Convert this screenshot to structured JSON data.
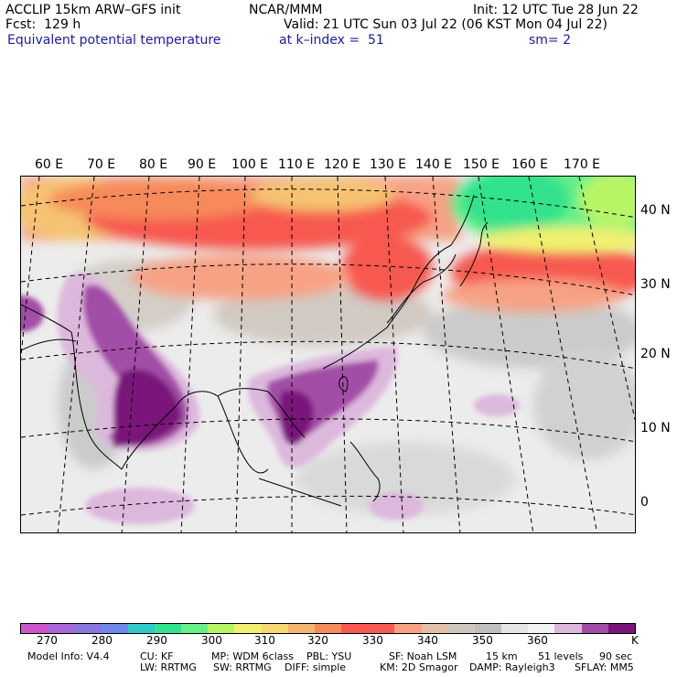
{
  "header": {
    "model": "ACCLIP 15km ARW–GFS init",
    "org": "NCAR/MMM",
    "init": "Init: 12 UTC Tue 28 Jun 22",
    "fcst": "Fcst:  129 h",
    "valid": "Valid: 21 UTC Sun 03 Jul 22 (06 KST Mon 04 Jul 22)",
    "field": "Equivalent potential temperature",
    "level": "at k–index =  51",
    "smooth": "sm= 2"
  },
  "map": {
    "lon_labels": [
      "60 E",
      "70 E",
      "80 E",
      "90 E",
      "100 E",
      "110 E",
      "120 E",
      "130 E",
      "140 E",
      "150 E",
      "160 E",
      "170 E"
    ],
    "lat_labels": [
      "40 N",
      "30 N",
      "20 N",
      "10 N",
      "0"
    ]
  },
  "colorbar": {
    "colors": [
      "#cc55cc",
      "#a866d8",
      "#8877dd",
      "#6e88e8",
      "#33c8c8",
      "#33e28c",
      "#66f08a",
      "#b8f566",
      "#f0f070",
      "#f5d873",
      "#f5b572",
      "#f78a5a",
      "#f7584f",
      "#f65a50",
      "#f7a285",
      "#e3c1a8",
      "#cfc7bf",
      "#bfbfbf",
      "#e6e6e6",
      "#f4f4f4",
      "#ddb8dd",
      "#a24ea6",
      "#7a157a"
    ],
    "labels": [
      "270",
      "280",
      "290",
      "300",
      "310",
      "320",
      "330",
      "340",
      "350",
      "360"
    ],
    "unit": "K"
  },
  "footer": {
    "line1": [
      "Model Info: V4.4",
      "CU: KF",
      "MP: WDM 6class",
      "PBL: YSU",
      "SF: Noah LSM",
      "15 km",
      "51 levels",
      "90 sec"
    ],
    "line2": [
      "LW: RRTMG",
      "SW: RRTMG",
      "DIFF: simple",
      "KM: 2D Smagor",
      "DAMP: Rayleigh3",
      "SFLAY: MM5"
    ]
  }
}
